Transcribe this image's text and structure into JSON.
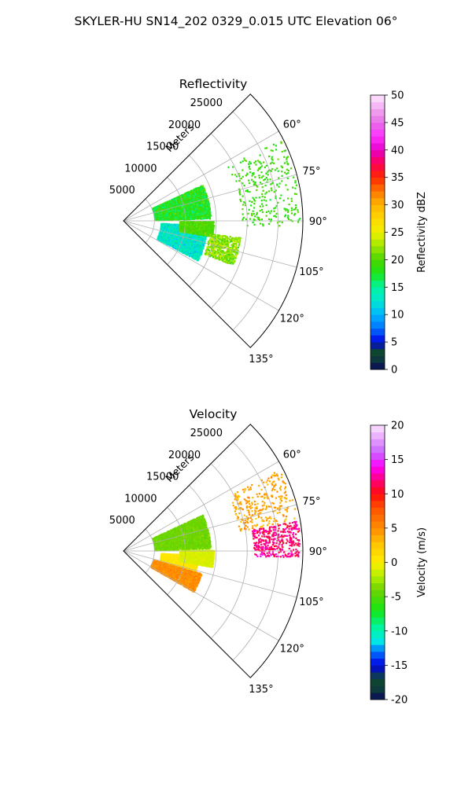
{
  "figure": {
    "title": "SKYLER-HU  SN14_202  0329_0.015 UTC Elevation 06°"
  },
  "chart_data": [
    {
      "type": "heatmap",
      "subtype": "polar-sector (PPI radar sweep)",
      "title": "Reflectivity",
      "radial_axis_label": "Meters",
      "radial_ticks": [
        "5000",
        "10000",
        "15000",
        "20000",
        "25000"
      ],
      "radial_range": [
        0,
        29000
      ],
      "azimuth_range_deg": [
        45,
        135
      ],
      "azimuth_tick_labels": [
        "60°",
        "75°",
        "90°",
        "105°",
        "120°",
        "135°"
      ],
      "grid": true,
      "colorbar": {
        "label": "Reflectivity dBZ",
        "range": [
          0,
          50
        ],
        "ticks": [
          "0",
          "5",
          "10",
          "15",
          "20",
          "25",
          "30",
          "35",
          "40",
          "45",
          "50"
        ],
        "stops": [
          {
            "v": 0,
            "c": "#0a0a5a"
          },
          {
            "v": 2,
            "c": "#0d3b3b"
          },
          {
            "v": 3.5,
            "c": "#0f4a2e"
          },
          {
            "v": 5,
            "c": "#0000e6"
          },
          {
            "v": 7.5,
            "c": "#0073ff"
          },
          {
            "v": 10,
            "c": "#00b4ff"
          },
          {
            "v": 12.5,
            "c": "#00e6d2"
          },
          {
            "v": 15,
            "c": "#00f5a0"
          },
          {
            "v": 17.5,
            "c": "#19e619"
          },
          {
            "v": 20,
            "c": "#4bd400"
          },
          {
            "v": 22.5,
            "c": "#a0e600"
          },
          {
            "v": 25,
            "c": "#f0f000"
          },
          {
            "v": 27.5,
            "c": "#ffd700"
          },
          {
            "v": 30,
            "c": "#ffb400"
          },
          {
            "v": 32.5,
            "c": "#ff7800"
          },
          {
            "v": 35,
            "c": "#ff2800"
          },
          {
            "v": 37.5,
            "c": "#ff0050"
          },
          {
            "v": 40,
            "c": "#e600c8"
          },
          {
            "v": 42.5,
            "c": "#ff32ff"
          },
          {
            "v": 45,
            "c": "#e66ee6"
          },
          {
            "v": 47.5,
            "c": "#f0aaf0"
          },
          {
            "v": 50,
            "c": "#ffe6ff"
          }
        ]
      },
      "echoes": [
        {
          "r_min": 5000,
          "r_max": 14000,
          "az_min": 65,
          "az_max": 88,
          "value": 18,
          "spread": 5,
          "density": 0.8
        },
        {
          "r_min": 6000,
          "r_max": 13500,
          "az_min": 93,
          "az_max": 118,
          "value": 13,
          "spread": 5,
          "density": 0.78
        },
        {
          "r_min": 9000,
          "r_max": 14500,
          "az_min": 90,
          "az_max": 100,
          "value": 20,
          "spread": 3,
          "density": 0.35
        },
        {
          "r_min": 19000,
          "r_max": 28500,
          "az_min": 62,
          "az_max": 92,
          "value": 19,
          "spread": 3,
          "density": 0.09
        },
        {
          "r_min": 14000,
          "r_max": 19000,
          "az_min": 98,
          "az_max": 112,
          "value": 22,
          "spread": 5,
          "density": 0.18
        }
      ]
    },
    {
      "type": "heatmap",
      "subtype": "polar-sector (PPI radar sweep)",
      "title": "Velocity",
      "radial_axis_label": "Meters",
      "radial_ticks": [
        "5000",
        "10000",
        "15000",
        "20000",
        "25000"
      ],
      "radial_range": [
        0,
        29000
      ],
      "azimuth_range_deg": [
        45,
        135
      ],
      "azimuth_tick_labels": [
        "60°",
        "75°",
        "90°",
        "105°",
        "120°",
        "135°"
      ],
      "grid": true,
      "colorbar": {
        "label": "Velocity (m/s)",
        "range": [
          -20,
          20
        ],
        "ticks": [
          "-20",
          "-15",
          "-10",
          "-5",
          "0",
          "5",
          "10",
          "15",
          "20"
        ],
        "stops": [
          {
            "v": -20,
            "c": "#0a0a5a"
          },
          {
            "v": -18.5,
            "c": "#0d3b3b"
          },
          {
            "v": -17,
            "c": "#0f4a2e"
          },
          {
            "v": -15,
            "c": "#0000e6"
          },
          {
            "v": -13,
            "c": "#0073ff"
          },
          {
            "v": -11.5,
            "c": "#00e6e6"
          },
          {
            "v": -9.5,
            "c": "#00f5a0"
          },
          {
            "v": -7,
            "c": "#14e614"
          },
          {
            "v": -4,
            "c": "#6ed200"
          },
          {
            "v": -2,
            "c": "#b4f000"
          },
          {
            "v": 0,
            "c": "#ffee00"
          },
          {
            "v": 2.5,
            "c": "#ffc800"
          },
          {
            "v": 5,
            "c": "#ff8c00"
          },
          {
            "v": 8,
            "c": "#ff5000"
          },
          {
            "v": 10,
            "c": "#ff0a0a"
          },
          {
            "v": 12,
            "c": "#ff0078"
          },
          {
            "v": 14,
            "c": "#ff00ff"
          },
          {
            "v": 16,
            "c": "#c864ff"
          },
          {
            "v": 18,
            "c": "#e6a0ff"
          },
          {
            "v": 20,
            "c": "#fae6ff"
          }
        ]
      },
      "echoes": [
        {
          "r_min": 5000,
          "r_max": 14000,
          "az_min": 65,
          "az_max": 88,
          "value": -4,
          "spread": 1.5,
          "density": 0.8
        },
        {
          "r_min": 6000,
          "r_max": 12000,
          "az_min": 93,
          "az_max": 106,
          "value": 0.5,
          "spread": 1.5,
          "density": 0.8
        },
        {
          "r_min": 5000,
          "r_max": 13000,
          "az_min": 106,
          "az_max": 120,
          "value": 5,
          "spread": 2.5,
          "density": 0.75
        },
        {
          "r_min": 9000,
          "r_max": 14500,
          "az_min": 89,
          "az_max": 100,
          "value": -1,
          "spread": 1,
          "density": 0.4
        },
        {
          "r_min": 19000,
          "r_max": 28500,
          "az_min": 62,
          "az_max": 80,
          "value": 4,
          "spread": 3,
          "density": 0.08
        },
        {
          "r_min": 21000,
          "r_max": 28500,
          "az_min": 80,
          "az_max": 92,
          "value": 12,
          "spread": 3,
          "density": 0.12
        }
      ]
    }
  ]
}
